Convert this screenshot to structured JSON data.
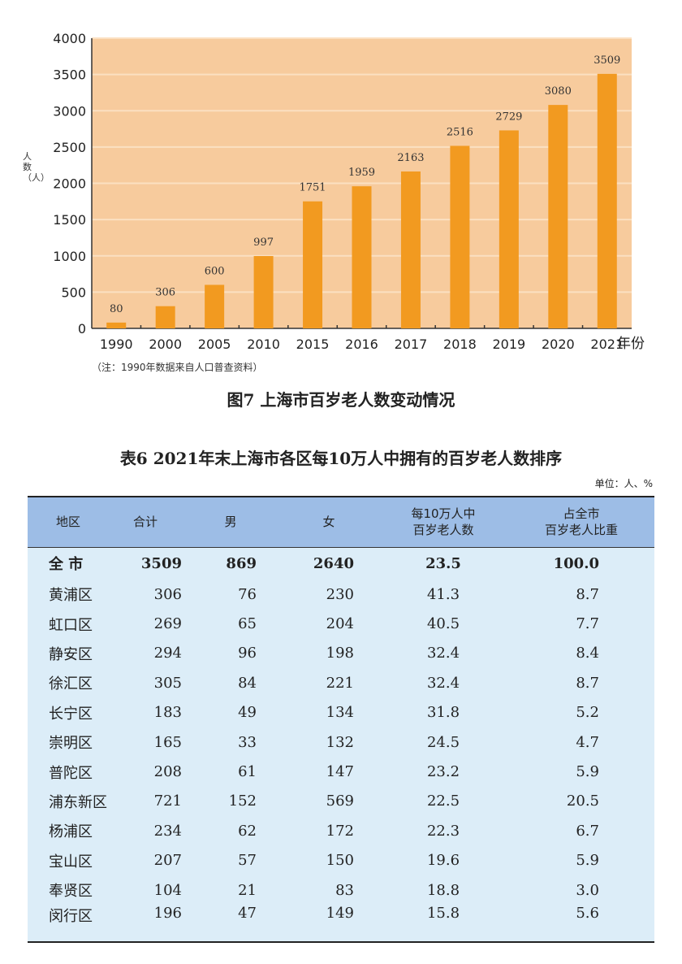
{
  "chart_data": {
    "type": "bar",
    "title": "图7  上海市百岁老人数变动情况",
    "ylabel": "人数（人）",
    "xlabel": "年份",
    "categories": [
      "1990",
      "2000",
      "2005",
      "2010",
      "2015",
      "2016",
      "2017",
      "2018",
      "2019",
      "2020",
      "2021"
    ],
    "values": [
      80,
      306,
      600,
      997,
      1751,
      1959,
      2163,
      2516,
      2729,
      3080,
      3509
    ],
    "ylim": [
      0,
      4000
    ],
    "yticks": [
      "0",
      "500",
      "1000",
      "1500",
      "2000",
      "2500",
      "3000",
      "3500",
      "4000"
    ],
    "grid": true,
    "note": "（注：1990年数据来自人口普查资料）",
    "colors": {
      "bar": "#f29a20",
      "plot_bg": "#f7cb9d",
      "grid": "#fbe0c2"
    }
  },
  "table": {
    "title": "表6  2021年末上海市各区每10万人中拥有的百岁老人数排序",
    "unit": "单位：人、%",
    "headers": [
      "地区",
      "合计",
      "男",
      "女",
      "每10万人中\n百岁老人数",
      "占全市\n百岁老人比重"
    ],
    "rows": [
      [
        "全  市",
        "3509",
        "869",
        "2640",
        "23.5",
        "100.0"
      ],
      [
        "黄浦区",
        "306",
        "76",
        "230",
        "41.3",
        "8.7"
      ],
      [
        "虹口区",
        "269",
        "65",
        "204",
        "40.5",
        "7.7"
      ],
      [
        "静安区",
        "294",
        "96",
        "198",
        "32.4",
        "8.4"
      ],
      [
        "徐汇区",
        "305",
        "84",
        "221",
        "32.4",
        "8.7"
      ],
      [
        "长宁区",
        "183",
        "49",
        "134",
        "31.8",
        "5.2"
      ],
      [
        "崇明区",
        "165",
        "33",
        "132",
        "24.5",
        "4.7"
      ],
      [
        "普陀区",
        "208",
        "61",
        "147",
        "23.2",
        "5.9"
      ],
      [
        "浦东新区",
        "721",
        "152",
        "569",
        "22.5",
        "20.5"
      ],
      [
        "杨浦区",
        "234",
        "62",
        "172",
        "22.3",
        "6.7"
      ],
      [
        "宝山区",
        "207",
        "57",
        "150",
        "19.6",
        "5.9"
      ],
      [
        "奉贤区",
        "104",
        "21",
        "83",
        "18.8",
        "3.0"
      ],
      [
        "闵行区",
        "196",
        "47",
        "149",
        "15.8",
        "5.6"
      ]
    ],
    "colors": {
      "header_bg": "#9dbde6",
      "body_bg": "#dcedf8"
    }
  }
}
